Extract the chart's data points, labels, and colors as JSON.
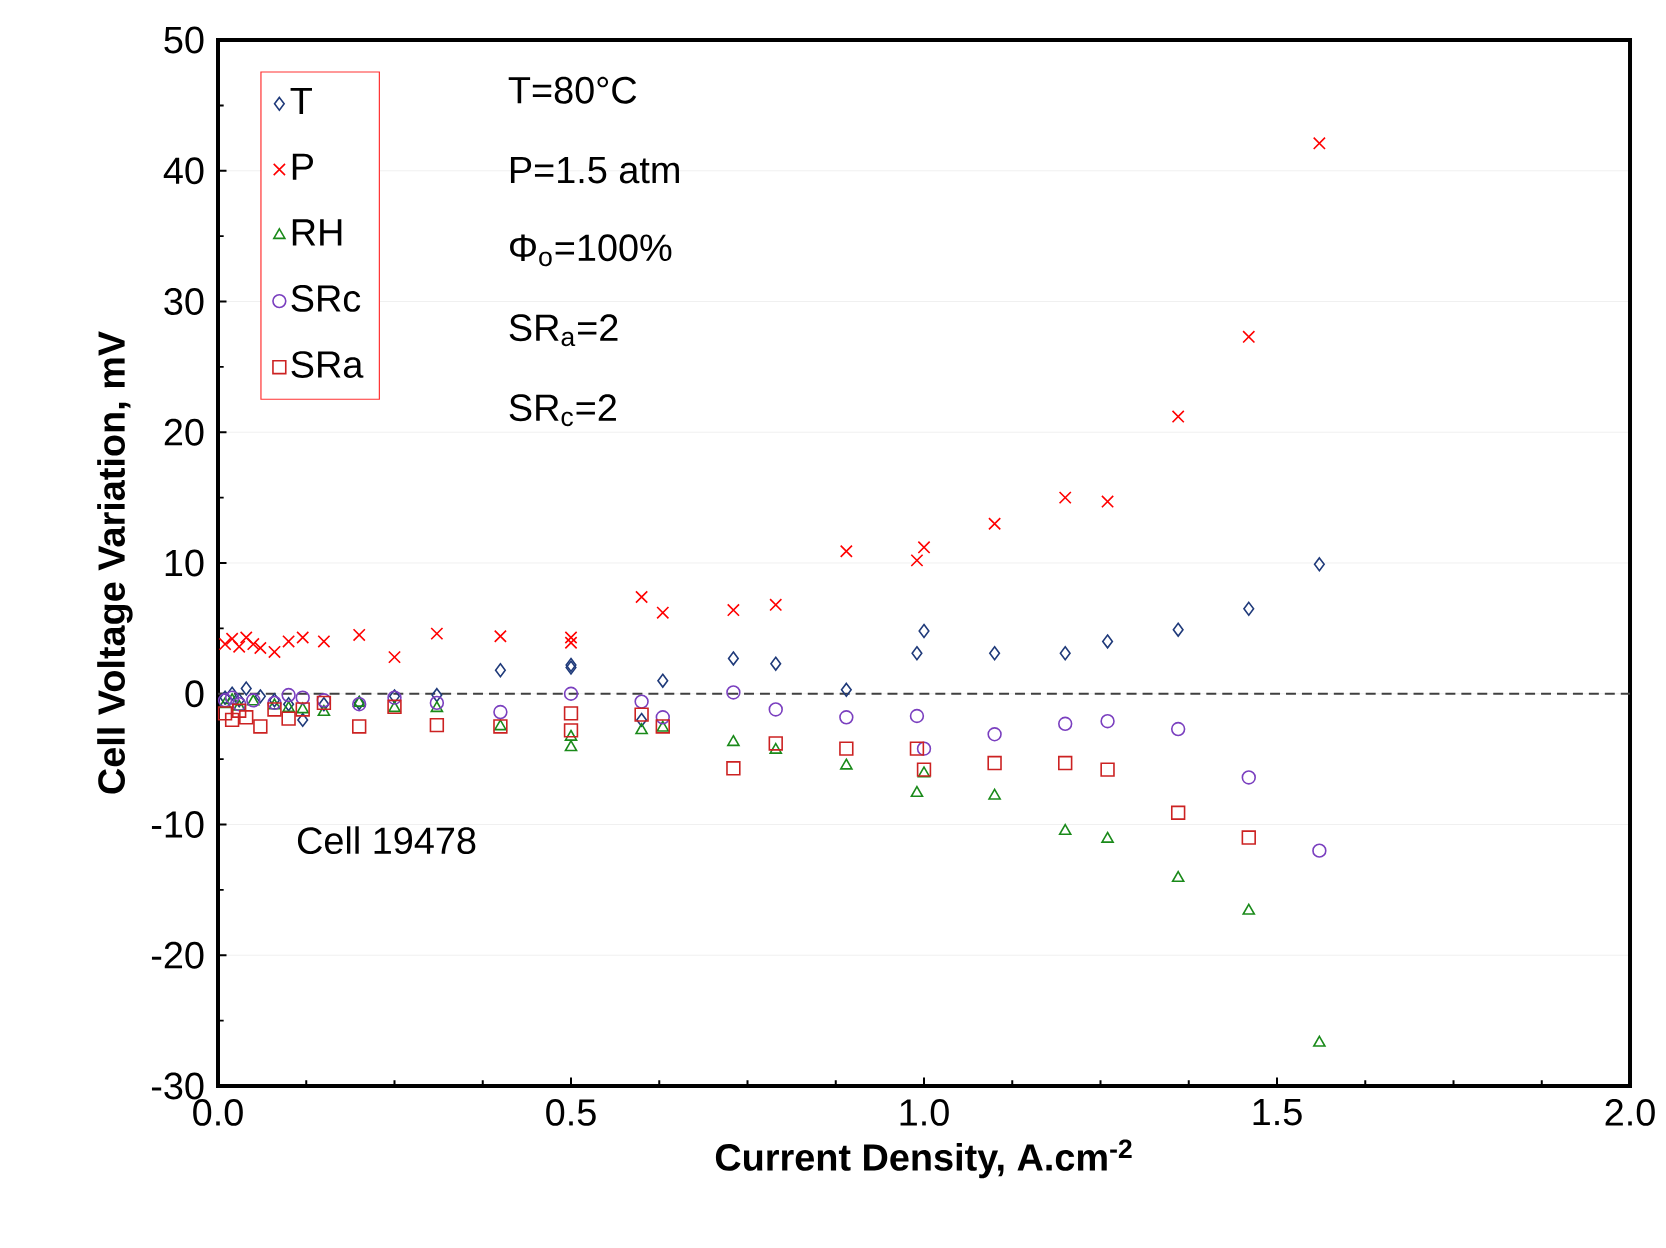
{
  "chart_data": {
    "type": "scatter",
    "xlabel": "Current Density, A.cm$^{-2}$",
    "ylabel": "Cell Voltage Variation, mV",
    "xlim": [
      0,
      2.0
    ],
    "ylim": [
      -30,
      50
    ],
    "xticks": [
      {
        "value": 0,
        "label": "0.0"
      },
      {
        "value": 0.5,
        "label": "0.5"
      },
      {
        "value": 1.0,
        "label": "1.0"
      },
      {
        "value": 1.5,
        "label": "1.5"
      },
      {
        "value": 2.0,
        "label": "2.0"
      }
    ],
    "yticks": [
      -30,
      -20,
      -10,
      0,
      10,
      20,
      30,
      40,
      50
    ],
    "grid": "y",
    "legend": "top left",
    "ref_lines": [
      {
        "axis": "y",
        "value": 0,
        "color": "#404040",
        "line_style": "dashed"
      }
    ],
    "annotations": [
      "T=80°C",
      "P=1.5 atm",
      "Φ$_{o}$=100%",
      "SR$_{a}$=2",
      "SR$_{c}$=2",
      "Cell 19478"
    ],
    "series": [
      {
        "name": "T",
        "color": "#1f3a7a",
        "marker": "diamond",
        "x": [
          0.01,
          0.02,
          0.03,
          0.04,
          0.06,
          0.08,
          0.1,
          0.12,
          0.15,
          0.2,
          0.25,
          0.31,
          0.4,
          0.5,
          0.5,
          0.6,
          0.63,
          0.73,
          0.79,
          0.89,
          0.99,
          1.0,
          1.1,
          1.2,
          1.26,
          1.36,
          1.46,
          1.56
        ],
        "values": [
          -0.3,
          0.0,
          -0.5,
          0.4,
          -0.2,
          -0.5,
          -0.8,
          -2.0,
          -0.8,
          -0.7,
          -0.2,
          -0.1,
          1.8,
          2.2,
          2.0,
          -2.0,
          1.0,
          2.7,
          2.3,
          0.3,
          3.1,
          4.8,
          3.1,
          3.1,
          4.0,
          4.9,
          6.5,
          9.9
        ]
      },
      {
        "name": "P",
        "color": "#ff0000",
        "marker": "cross",
        "x": [
          0.01,
          0.02,
          0.03,
          0.04,
          0.05,
          0.06,
          0.08,
          0.1,
          0.12,
          0.15,
          0.2,
          0.25,
          0.31,
          0.4,
          0.5,
          0.5,
          0.6,
          0.63,
          0.73,
          0.79,
          0.89,
          0.99,
          1.0,
          1.1,
          1.2,
          1.26,
          1.36,
          1.46,
          1.56
        ],
        "values": [
          3.8,
          4.2,
          3.6,
          4.3,
          3.8,
          3.5,
          3.2,
          4.0,
          4.3,
          4.0,
          4.5,
          2.8,
          4.6,
          4.4,
          4.3,
          3.9,
          7.4,
          6.2,
          6.4,
          6.8,
          10.9,
          10.2,
          11.2,
          13.0,
          15.0,
          14.7,
          21.2,
          27.3,
          42.1
        ]
      },
      {
        "name": "RH",
        "color": "#1a8a1a",
        "marker": "triangle",
        "x": [
          0.01,
          0.02,
          0.03,
          0.05,
          0.08,
          0.1,
          0.12,
          0.15,
          0.2,
          0.25,
          0.31,
          0.4,
          0.5,
          0.5,
          0.6,
          0.63,
          0.73,
          0.79,
          0.89,
          0.99,
          1.0,
          1.1,
          1.2,
          1.26,
          1.36,
          1.46,
          1.56
        ],
        "values": [
          -0.8,
          -0.5,
          -1.0,
          -0.6,
          -0.9,
          -1.1,
          -1.2,
          -1.4,
          -0.7,
          -1.1,
          -1.1,
          -2.5,
          -4.1,
          -3.3,
          -2.8,
          -2.6,
          -3.7,
          -4.3,
          -5.5,
          -7.6,
          -6.1,
          -7.8,
          -10.5,
          -11.1,
          -14.1,
          -16.6,
          -26.7
        ]
      },
      {
        "name": "SRc",
        "color": "#7a3fbf",
        "marker": "circle",
        "x": [
          0.01,
          0.02,
          0.03,
          0.05,
          0.08,
          0.1,
          0.12,
          0.15,
          0.2,
          0.25,
          0.31,
          0.4,
          0.5,
          0.6,
          0.63,
          0.73,
          0.79,
          0.89,
          0.99,
          1.0,
          1.1,
          1.2,
          1.26,
          1.36,
          1.46,
          1.56
        ],
        "values": [
          -0.5,
          -0.3,
          -0.8,
          -0.5,
          -0.7,
          -0.1,
          -0.3,
          -0.5,
          -0.8,
          -0.3,
          -0.7,
          -1.4,
          0.0,
          -0.6,
          -1.8,
          0.1,
          -1.2,
          -1.8,
          -1.7,
          -4.2,
          -3.1,
          -2.3,
          -2.1,
          -2.7,
          -6.4,
          -12.0
        ]
      },
      {
        "name": "SRa",
        "color": "#cc2222",
        "marker": "square",
        "x": [
          0.01,
          0.02,
          0.03,
          0.04,
          0.06,
          0.08,
          0.1,
          0.12,
          0.15,
          0.2,
          0.25,
          0.31,
          0.4,
          0.5,
          0.5,
          0.6,
          0.63,
          0.73,
          0.79,
          0.89,
          0.99,
          1.0,
          1.1,
          1.2,
          1.26,
          1.36,
          1.46
        ],
        "values": [
          -1.5,
          -2.0,
          -1.3,
          -1.8,
          -2.5,
          -1.2,
          -1.9,
          -1.2,
          -0.7,
          -2.5,
          -1.0,
          -2.4,
          -2.5,
          -2.8,
          -1.5,
          -1.6,
          -2.5,
          -5.7,
          -3.8,
          -4.2,
          -4.2,
          -5.8,
          -5.3,
          -5.3,
          -5.8,
          -9.1,
          -11.0
        ]
      }
    ]
  }
}
